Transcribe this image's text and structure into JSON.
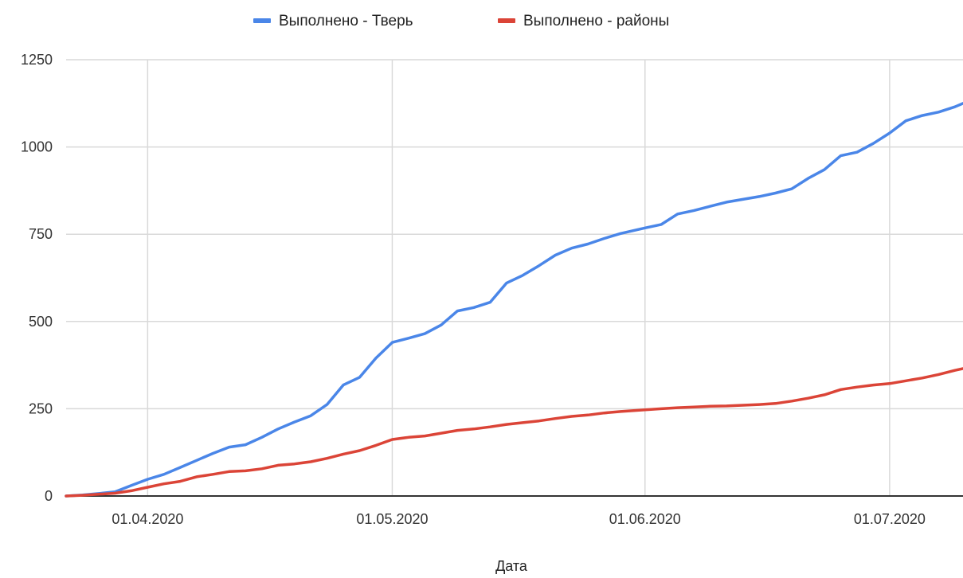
{
  "chart_data": {
    "type": "line",
    "title": "",
    "xlabel": "Дата",
    "ylabel": "",
    "ylim": [
      0,
      1250
    ],
    "y_ticks": [
      0,
      250,
      500,
      750,
      1000,
      1250
    ],
    "y_tick_labels": [
      "0",
      "250",
      "500",
      "750",
      "1000",
      "1250"
    ],
    "x_range": [
      "2020-03-22",
      "2020-07-10"
    ],
    "x_ticks": [
      "2020-04-01",
      "2020-05-01",
      "2020-06-01",
      "2020-07-01"
    ],
    "x_tick_labels": [
      "01.04.2020",
      "01.05.2020",
      "01.06.2020",
      "01.07.2020"
    ],
    "grid": true,
    "legend_position": "top",
    "series": [
      {
        "name": "Выполнено - Тверь",
        "color": "#4a86e8",
        "x": [
          "2020-03-22",
          "2020-03-24",
          "2020-03-26",
          "2020-03-28",
          "2020-03-30",
          "2020-04-01",
          "2020-04-03",
          "2020-04-05",
          "2020-04-07",
          "2020-04-09",
          "2020-04-11",
          "2020-04-13",
          "2020-04-15",
          "2020-04-17",
          "2020-04-19",
          "2020-04-21",
          "2020-04-23",
          "2020-04-25",
          "2020-04-27",
          "2020-04-29",
          "2020-05-01",
          "2020-05-03",
          "2020-05-05",
          "2020-05-07",
          "2020-05-09",
          "2020-05-11",
          "2020-05-13",
          "2020-05-15",
          "2020-05-17",
          "2020-05-19",
          "2020-05-21",
          "2020-05-23",
          "2020-05-25",
          "2020-05-27",
          "2020-05-29",
          "2020-06-01",
          "2020-06-03",
          "2020-06-05",
          "2020-06-07",
          "2020-06-09",
          "2020-06-11",
          "2020-06-13",
          "2020-06-15",
          "2020-06-17",
          "2020-06-19",
          "2020-06-21",
          "2020-06-23",
          "2020-06-25",
          "2020-06-27",
          "2020-06-29",
          "2020-07-01",
          "2020-07-03",
          "2020-07-05",
          "2020-07-07",
          "2020-07-09",
          "2020-07-10"
        ],
        "values": [
          0,
          3,
          7,
          12,
          30,
          48,
          62,
          82,
          102,
          122,
          140,
          147,
          168,
          192,
          212,
          230,
          262,
          318,
          340,
          395,
          440,
          452,
          465,
          490,
          530,
          540,
          555,
          610,
          632,
          660,
          690,
          710,
          722,
          738,
          752,
          768,
          778,
          808,
          818,
          830,
          842,
          850,
          858,
          868,
          880,
          910,
          935,
          975,
          985,
          1010,
          1040,
          1075,
          1090,
          1100,
          1115,
          1125
        ]
      },
      {
        "name": "Выполнено - районы",
        "color": "#db4437",
        "x": [
          "2020-03-22",
          "2020-03-24",
          "2020-03-26",
          "2020-03-28",
          "2020-03-30",
          "2020-04-01",
          "2020-04-03",
          "2020-04-05",
          "2020-04-07",
          "2020-04-09",
          "2020-04-11",
          "2020-04-13",
          "2020-04-15",
          "2020-04-17",
          "2020-04-19",
          "2020-04-21",
          "2020-04-23",
          "2020-04-25",
          "2020-04-27",
          "2020-04-29",
          "2020-05-01",
          "2020-05-03",
          "2020-05-05",
          "2020-05-07",
          "2020-05-09",
          "2020-05-11",
          "2020-05-13",
          "2020-05-15",
          "2020-05-17",
          "2020-05-19",
          "2020-05-21",
          "2020-05-23",
          "2020-05-25",
          "2020-05-27",
          "2020-05-29",
          "2020-06-01",
          "2020-06-03",
          "2020-06-05",
          "2020-06-07",
          "2020-06-09",
          "2020-06-11",
          "2020-06-13",
          "2020-06-15",
          "2020-06-17",
          "2020-06-19",
          "2020-06-21",
          "2020-06-23",
          "2020-06-25",
          "2020-06-27",
          "2020-06-29",
          "2020-07-01",
          "2020-07-03",
          "2020-07-05",
          "2020-07-07",
          "2020-07-09",
          "2020-07-10"
        ],
        "values": [
          0,
          2,
          5,
          8,
          15,
          25,
          35,
          42,
          55,
          62,
          70,
          72,
          78,
          88,
          92,
          98,
          108,
          120,
          130,
          145,
          162,
          168,
          172,
          180,
          188,
          192,
          198,
          205,
          210,
          215,
          222,
          228,
          232,
          238,
          242,
          247,
          250,
          253,
          255,
          257,
          258,
          260,
          262,
          265,
          272,
          280,
          290,
          305,
          312,
          318,
          322,
          330,
          338,
          348,
          360,
          365
        ]
      }
    ]
  }
}
